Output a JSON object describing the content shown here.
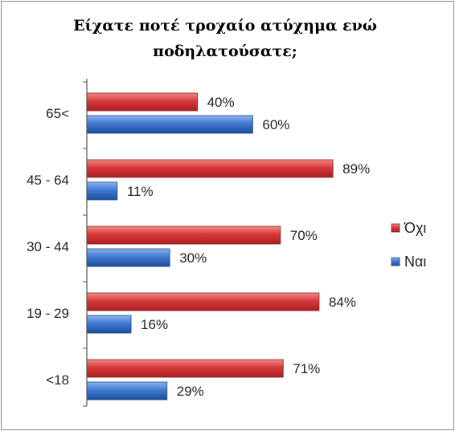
{
  "chart_data": {
    "type": "bar",
    "orientation": "horizontal",
    "title": "Είχατε ποτέ τροχαίο ατύχημα ενώ ποδηλατούσατε;",
    "categories": [
      "65<",
      "45 - 64",
      "30 - 44",
      "19 - 29",
      "<18"
    ],
    "series": [
      {
        "name": "Όχι",
        "color": "#d9393a",
        "values": [
          40,
          89,
          70,
          84,
          71
        ],
        "labels": [
          "40%",
          "89%",
          "70%",
          "84%",
          "71%"
        ]
      },
      {
        "name": "Ναι",
        "color": "#3f79d1",
        "values": [
          60,
          11,
          30,
          16,
          29
        ],
        "labels": [
          "60%",
          "11%",
          "30%",
          "16%",
          "29%"
        ]
      }
    ],
    "unit": "%",
    "xlim": [
      0,
      100
    ],
    "grid": false,
    "legend_position": "right"
  }
}
